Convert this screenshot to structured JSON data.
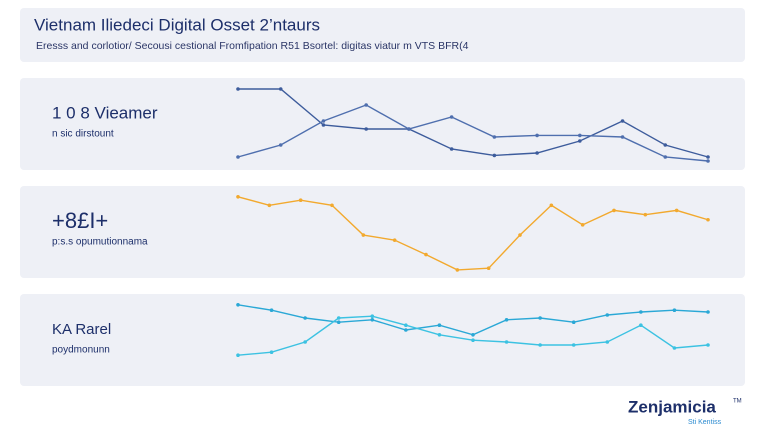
{
  "header": {
    "title": "Vietnam Iliedeci Digital Osset 2’ntaurs",
    "subtitle": "Eresss and corlotior/ Secousi cestional Fromfipation R51 Bsortel: digitas viatur m VTS BFR(4"
  },
  "chart_data": [
    {
      "type": "line",
      "title": "1 0 8 Vieamer",
      "subtitle": "n sic dirstount",
      "ylim": [
        0,
        100
      ],
      "series": [
        {
          "color": "#3d5c9c",
          "values": [
            95,
            95,
            50,
            45,
            45,
            20,
            12,
            15,
            30,
            55,
            25,
            10
          ]
        },
        {
          "color": "#4f6fae",
          "values": [
            10,
            25,
            55,
            75,
            45,
            60,
            35,
            37,
            37,
            35,
            10,
            5
          ]
        }
      ]
    },
    {
      "type": "line",
      "title": "+8£I+",
      "subtitle": "p:s.s opumutionnama",
      "ylim": [
        0,
        100
      ],
      "series": [
        {
          "color": "#f2a92e",
          "values": [
            92,
            82,
            88,
            82,
            47,
            41,
            24,
            6,
            8,
            47,
            82,
            59,
            76,
            71,
            76,
            65
          ]
        }
      ]
    },
    {
      "type": "line",
      "title": "KA Rarel",
      "subtitle": "poydmonunn",
      "ylim": [
        0,
        100
      ],
      "series": [
        {
          "color": "#2aa8d6",
          "values": [
            92,
            83,
            70,
            63,
            67,
            50,
            58,
            42,
            67,
            70,
            63,
            75,
            80,
            83,
            80
          ]
        },
        {
          "color": "#3cc2e2",
          "values": [
            8,
            13,
            30,
            70,
            73,
            58,
            42,
            33,
            30,
            25,
            25,
            30,
            58,
            20,
            25
          ]
        }
      ]
    }
  ],
  "brand": {
    "name": "Zenjamicia",
    "mark": "TM",
    "tagline": "Sti Kentiss"
  }
}
